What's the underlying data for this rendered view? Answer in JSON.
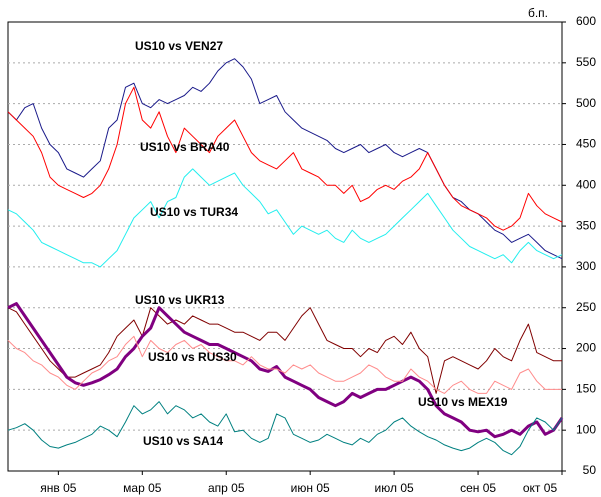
{
  "chart_data": {
    "type": "line",
    "y_unit": "б.п.",
    "categories": [
      null,
      null,
      null,
      null,
      null,
      null,
      "янв 05",
      null,
      null,
      null,
      null,
      null,
      null,
      null,
      null,
      null,
      "мар 05",
      null,
      null,
      null,
      null,
      null,
      null,
      null,
      null,
      null,
      "апр 05",
      null,
      null,
      null,
      null,
      null,
      null,
      null,
      null,
      null,
      "июн 05",
      null,
      null,
      null,
      null,
      null,
      null,
      null,
      null,
      null,
      "июл 05",
      null,
      null,
      null,
      null,
      null,
      null,
      null,
      null,
      null,
      "сен 05",
      null,
      null,
      null,
      null,
      null,
      null,
      null,
      null,
      null,
      "окт 05"
    ],
    "ylim": [
      50,
      600
    ],
    "yticks": [
      50,
      100,
      150,
      200,
      250,
      300,
      350,
      400,
      450,
      500,
      550,
      600
    ],
    "grid": true,
    "y_axis_side": "right",
    "series": [
      {
        "name": "US10 vs VEN27",
        "color": "#1a1a8a",
        "values": [
          490,
          480,
          495,
          500,
          470,
          450,
          440,
          420,
          415,
          410,
          420,
          430,
          470,
          480,
          520,
          525,
          500,
          495,
          505,
          500,
          505,
          510,
          520,
          515,
          525,
          540,
          550,
          555,
          545,
          530,
          500,
          505,
          510,
          490,
          480,
          470,
          465,
          460,
          455,
          445,
          440,
          445,
          450,
          440,
          445,
          450,
          440,
          435,
          440,
          445,
          440,
          420,
          400,
          385,
          380,
          370,
          365,
          355,
          345,
          340,
          330,
          335,
          340,
          330,
          320,
          315,
          310
        ]
      },
      {
        "name": "US10 vs BRA40",
        "color": "#ff0000",
        "values": [
          490,
          480,
          470,
          460,
          440,
          410,
          400,
          395,
          390,
          385,
          390,
          400,
          420,
          450,
          500,
          520,
          480,
          470,
          490,
          460,
          440,
          470,
          460,
          450,
          440,
          460,
          470,
          480,
          460,
          440,
          430,
          425,
          420,
          430,
          440,
          420,
          415,
          410,
          400,
          400,
          390,
          400,
          380,
          385,
          395,
          400,
          395,
          405,
          410,
          420,
          440,
          420,
          400,
          385,
          375,
          370,
          365,
          360,
          350,
          345,
          350,
          360,
          390,
          375,
          365,
          360,
          355
        ]
      },
      {
        "name": "US10 vs TUR34",
        "color": "#22eeee",
        "values": [
          370,
          365,
          355,
          345,
          330,
          325,
          320,
          315,
          310,
          305,
          305,
          300,
          310,
          320,
          340,
          360,
          370,
          380,
          360,
          380,
          385,
          410,
          420,
          410,
          400,
          405,
          410,
          415,
          400,
          390,
          380,
          365,
          370,
          355,
          340,
          350,
          345,
          340,
          345,
          335,
          330,
          345,
          335,
          330,
          335,
          340,
          350,
          360,
          370,
          380,
          390,
          375,
          360,
          345,
          335,
          325,
          320,
          315,
          310,
          315,
          305,
          320,
          330,
          320,
          315,
          310,
          315
        ]
      },
      {
        "name": "US10 vs UKR13",
        "color": "#800000",
        "values": [
          250,
          245,
          230,
          215,
          200,
          185,
          175,
          165,
          165,
          170,
          175,
          180,
          195,
          215,
          225,
          235,
          215,
          250,
          240,
          230,
          235,
          230,
          240,
          235,
          230,
          230,
          225,
          220,
          220,
          215,
          210,
          220,
          220,
          210,
          225,
          240,
          250,
          230,
          210,
          205,
          200,
          200,
          190,
          200,
          195,
          210,
          215,
          205,
          220,
          200,
          190,
          145,
          185,
          190,
          185,
          180,
          175,
          185,
          200,
          190,
          185,
          210,
          230,
          195,
          190,
          185,
          185
        ]
      },
      {
        "name": "US10 vs RUS30",
        "color": "#800080",
        "width": 3,
        "values": [
          250,
          255,
          240,
          225,
          210,
          195,
          180,
          165,
          158,
          155,
          158,
          162,
          168,
          175,
          190,
          200,
          215,
          225,
          250,
          240,
          230,
          220,
          215,
          210,
          205,
          205,
          200,
          195,
          190,
          185,
          175,
          172,
          178,
          165,
          160,
          155,
          150,
          140,
          135,
          130,
          135,
          145,
          140,
          145,
          150,
          150,
          155,
          160,
          165,
          160,
          150,
          130,
          120,
          115,
          110,
          100,
          98,
          100,
          92,
          95,
          100,
          95,
          105,
          110,
          95,
          100,
          115
        ]
      },
      {
        "name": "US10 vs MEX19",
        "color": "#ff8c8c",
        "values": [
          210,
          200,
          195,
          185,
          180,
          170,
          165,
          155,
          150,
          160,
          170,
          175,
          185,
          190,
          205,
          215,
          190,
          210,
          200,
          195,
          205,
          210,
          200,
          205,
          195,
          190,
          185,
          185,
          180,
          190,
          180,
          175,
          175,
          170,
          180,
          175,
          180,
          170,
          165,
          160,
          160,
          165,
          170,
          180,
          175,
          165,
          160,
          160,
          175,
          165,
          160,
          150,
          145,
          155,
          160,
          150,
          145,
          145,
          160,
          155,
          150,
          170,
          175,
          160,
          150,
          150,
          150
        ]
      },
      {
        "name": "US10 vs SA14",
        "color": "#008080",
        "label_color": "#808080",
        "values": [
          100,
          103,
          108,
          100,
          88,
          80,
          78,
          82,
          85,
          90,
          95,
          105,
          100,
          92,
          110,
          130,
          120,
          125,
          135,
          120,
          130,
          125,
          115,
          120,
          110,
          105,
          120,
          98,
          100,
          90,
          85,
          90,
          120,
          115,
          95,
          90,
          85,
          88,
          95,
          90,
          85,
          82,
          90,
          85,
          95,
          100,
          110,
          115,
          105,
          98,
          92,
          88,
          82,
          78,
          75,
          78,
          85,
          90,
          85,
          75,
          70,
          80,
          100,
          115,
          110,
          100,
          115
        ]
      }
    ]
  }
}
